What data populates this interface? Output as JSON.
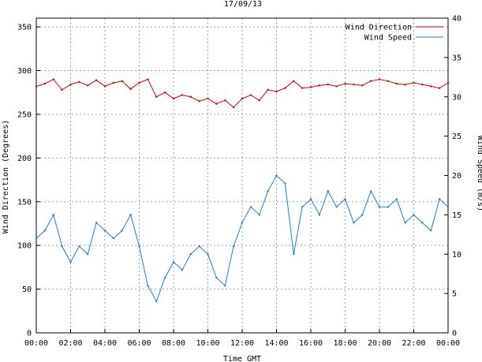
{
  "chart_data": {
    "type": "line",
    "title": "17/09/13",
    "xlabel": "Time GMT",
    "ylabel_left": "Wind Direction (Degrees)",
    "ylabel_right": "Wind Speed (m/s)",
    "x_tick_labels": [
      "00:00",
      "02:00",
      "04:00",
      "06:00",
      "08:00",
      "10:00",
      "12:00",
      "14:00",
      "16:00",
      "18:00",
      "20:00",
      "22:00",
      "00:00"
    ],
    "x_range_hours": [
      0,
      24
    ],
    "x_tick_step_hours": 2,
    "y_left_ticks": [
      0,
      50,
      100,
      150,
      200,
      250,
      300,
      350
    ],
    "y_left_range": [
      0,
      360
    ],
    "y_right_ticks": [
      0,
      5,
      10,
      15,
      20,
      25,
      30,
      35,
      40
    ],
    "y_right_range": [
      0,
      40
    ],
    "grid": true,
    "legend_position": "top-right",
    "series": [
      {
        "name": "Wind Direction",
        "axis": "left",
        "color": "#d00000",
        "time_hours": [
          0,
          0.5,
          1,
          1.5,
          2,
          2.5,
          3,
          3.5,
          4,
          4.5,
          5,
          5.5,
          6,
          6.5,
          7,
          7.5,
          8,
          8.5,
          9,
          9.5,
          10,
          10.5,
          11,
          11.5,
          12,
          12.5,
          13,
          13.5,
          14,
          14.5,
          15,
          15.5,
          16,
          16.5,
          17,
          17.5,
          18,
          18.5,
          19,
          19.5,
          20,
          20.5,
          21,
          21.5,
          22,
          22.5,
          23,
          23.5,
          24
        ],
        "values": [
          282,
          285,
          290,
          278,
          284,
          287,
          283,
          289,
          282,
          286,
          288,
          279,
          286,
          290,
          270,
          275,
          268,
          272,
          270,
          265,
          268,
          262,
          266,
          258,
          268,
          272,
          266,
          278,
          276,
          280,
          288,
          280,
          281,
          283,
          284,
          282,
          285,
          284,
          283,
          288,
          290,
          288,
          285,
          284,
          286,
          284,
          282,
          280,
          286
        ]
      },
      {
        "name": "Wind Speed",
        "axis": "right",
        "color": "#1f7fd0",
        "time_hours": [
          0,
          0.5,
          1,
          1.5,
          2,
          2.5,
          3,
          3.5,
          4,
          4.5,
          5,
          5.5,
          6,
          6.5,
          7,
          7.5,
          8,
          8.5,
          9,
          9.5,
          10,
          10.5,
          11,
          11.5,
          12,
          12.5,
          13,
          13.5,
          14,
          14.5,
          15,
          15.5,
          16,
          16.5,
          17,
          17.5,
          18,
          18.5,
          19,
          19.5,
          20,
          20.5,
          21,
          21.5,
          22,
          22.5,
          23,
          23.5,
          24
        ],
        "values": [
          12,
          13,
          15,
          11,
          9,
          11,
          10,
          14,
          13,
          12,
          13,
          15,
          11,
          6,
          4,
          7,
          9,
          8,
          10,
          11,
          10,
          7,
          6,
          11,
          14,
          16,
          15,
          18,
          20,
          19,
          10,
          16,
          17,
          15,
          18,
          16,
          17,
          14,
          15,
          18,
          16,
          16,
          17,
          14,
          15,
          14,
          13,
          17,
          16
        ]
      }
    ]
  }
}
